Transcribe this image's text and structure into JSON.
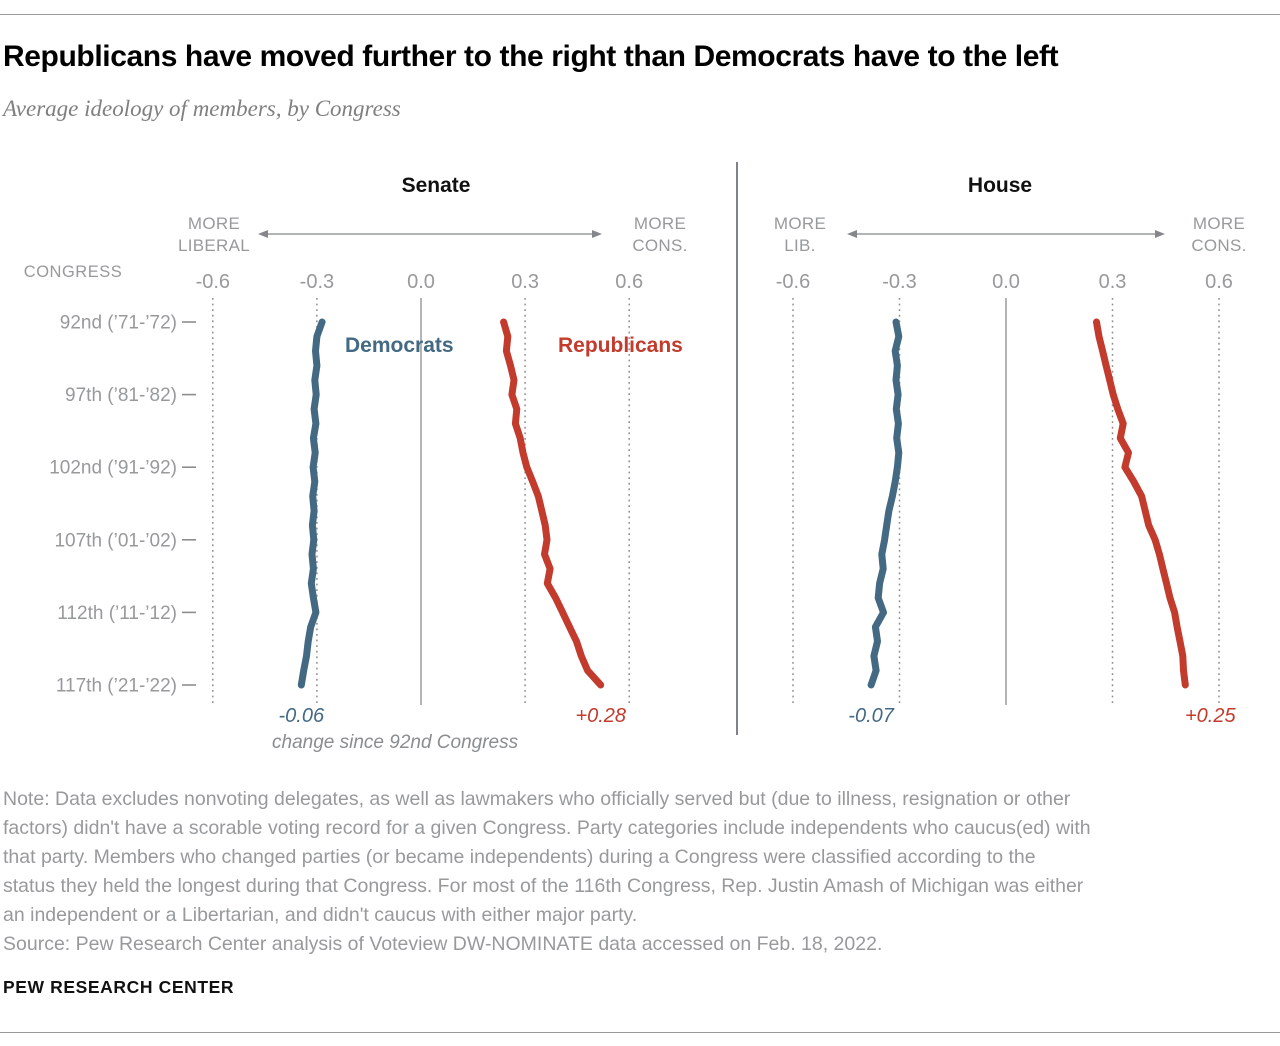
{
  "page": {
    "title": "Republicans have moved further to the right than Democrats have to the left",
    "subtitle": "Average ideology of members, by Congress",
    "source": "Source: Pew Research Center analysis of Voteview DW-NOMINATE data accessed on Feb. 18, 2022.",
    "footer": "PEW RESEARCH CENTER",
    "note_lines": [
      "Note: Data excludes nonvoting delegates, as well as lawmakers who officially served but (due to illness, resignation or other",
      "factors) didn't have a scorable voting record for a given Congress. Party categories include independents who caucus(ed) with",
      "that party. Members who changed parties (or became independents) during a Congress were classified according to the",
      "status they held the longest during that Congress. For most of the 116th Congress, Rep. Justin Amash of Michigan was either",
      "an independent or a Libertarian, and didn't caucus with either major party."
    ]
  },
  "colors": {
    "democrat": "#436983",
    "republican": "#c23b2c",
    "grid": "#8d8d8d",
    "axis_text": "#97999b",
    "arrow": "#85878a",
    "divider": "#5f6368"
  },
  "chart_data": {
    "type": "line",
    "orientation": "vertical-time",
    "x_range": [
      -0.6,
      0.6
    ],
    "x_ticks": {
      "labels": [
        "-0.6",
        "-0.3",
        "0.0",
        "0.3",
        "0.6"
      ],
      "values": [
        -0.6,
        -0.3,
        0,
        0.3,
        0.6
      ]
    },
    "congress_axis_label": "CONGRESS",
    "congress_start": 92,
    "congress_end": 117,
    "row_labels": [
      "92nd (’71-’72)",
      "97th (’81-’82)",
      "102nd (’91-’92)",
      "107th (’01-’02)",
      "112th (’11-’12)",
      "117th (’21-’22)"
    ],
    "row_label_step": 5,
    "caption": "change since 92nd Congress",
    "panels": [
      {
        "id": "senate",
        "title": "Senate",
        "left_axis_label": [
          "MORE",
          "LIBERAL"
        ],
        "right_axis_label": [
          "MORE",
          "CONS."
        ],
        "show_series_labels": true,
        "series": [
          {
            "name": "Democrats",
            "party": "democrat",
            "color": "#436983",
            "change_label": "-0.06",
            "values": [
              -0.285,
              -0.3,
              -0.304,
              -0.3,
              -0.306,
              -0.302,
              -0.308,
              -0.303,
              -0.31,
              -0.305,
              -0.311,
              -0.306,
              -0.312,
              -0.308,
              -0.313,
              -0.309,
              -0.314,
              -0.31,
              -0.316,
              -0.31,
              -0.303,
              -0.318,
              -0.325,
              -0.33,
              -0.338,
              -0.345
            ]
          },
          {
            "name": "Republicans",
            "party": "republican",
            "color": "#c23b2c",
            "change_label": "+0.28",
            "values": [
              0.238,
              0.25,
              0.246,
              0.258,
              0.268,
              0.262,
              0.276,
              0.272,
              0.286,
              0.294,
              0.305,
              0.322,
              0.338,
              0.348,
              0.358,
              0.363,
              0.356,
              0.372,
              0.364,
              0.388,
              0.408,
              0.428,
              0.448,
              0.462,
              0.48,
              0.518
            ]
          }
        ]
      },
      {
        "id": "house",
        "title": "House",
        "left_axis_label": [
          "MORE",
          "LIB."
        ],
        "right_axis_label": [
          "MORE",
          "CONS."
        ],
        "show_series_labels": false,
        "series": [
          {
            "name": "Democrats",
            "party": "democrat",
            "color": "#436983",
            "change_label": "-0.07",
            "values": [
              -0.31,
              -0.302,
              -0.312,
              -0.306,
              -0.31,
              -0.304,
              -0.309,
              -0.303,
              -0.308,
              -0.302,
              -0.306,
              -0.312,
              -0.32,
              -0.33,
              -0.336,
              -0.342,
              -0.35,
              -0.346,
              -0.356,
              -0.36,
              -0.345,
              -0.368,
              -0.362,
              -0.372,
              -0.366,
              -0.38
            ]
          },
          {
            "name": "Republicans",
            "party": "republican",
            "color": "#c23b2c",
            "change_label": "+0.25",
            "values": [
              0.255,
              0.262,
              0.272,
              0.282,
              0.292,
              0.302,
              0.315,
              0.33,
              0.322,
              0.345,
              0.335,
              0.36,
              0.382,
              0.392,
              0.402,
              0.42,
              0.432,
              0.442,
              0.452,
              0.462,
              0.475,
              0.482,
              0.49,
              0.498,
              0.5,
              0.505
            ]
          }
        ]
      }
    ]
  }
}
